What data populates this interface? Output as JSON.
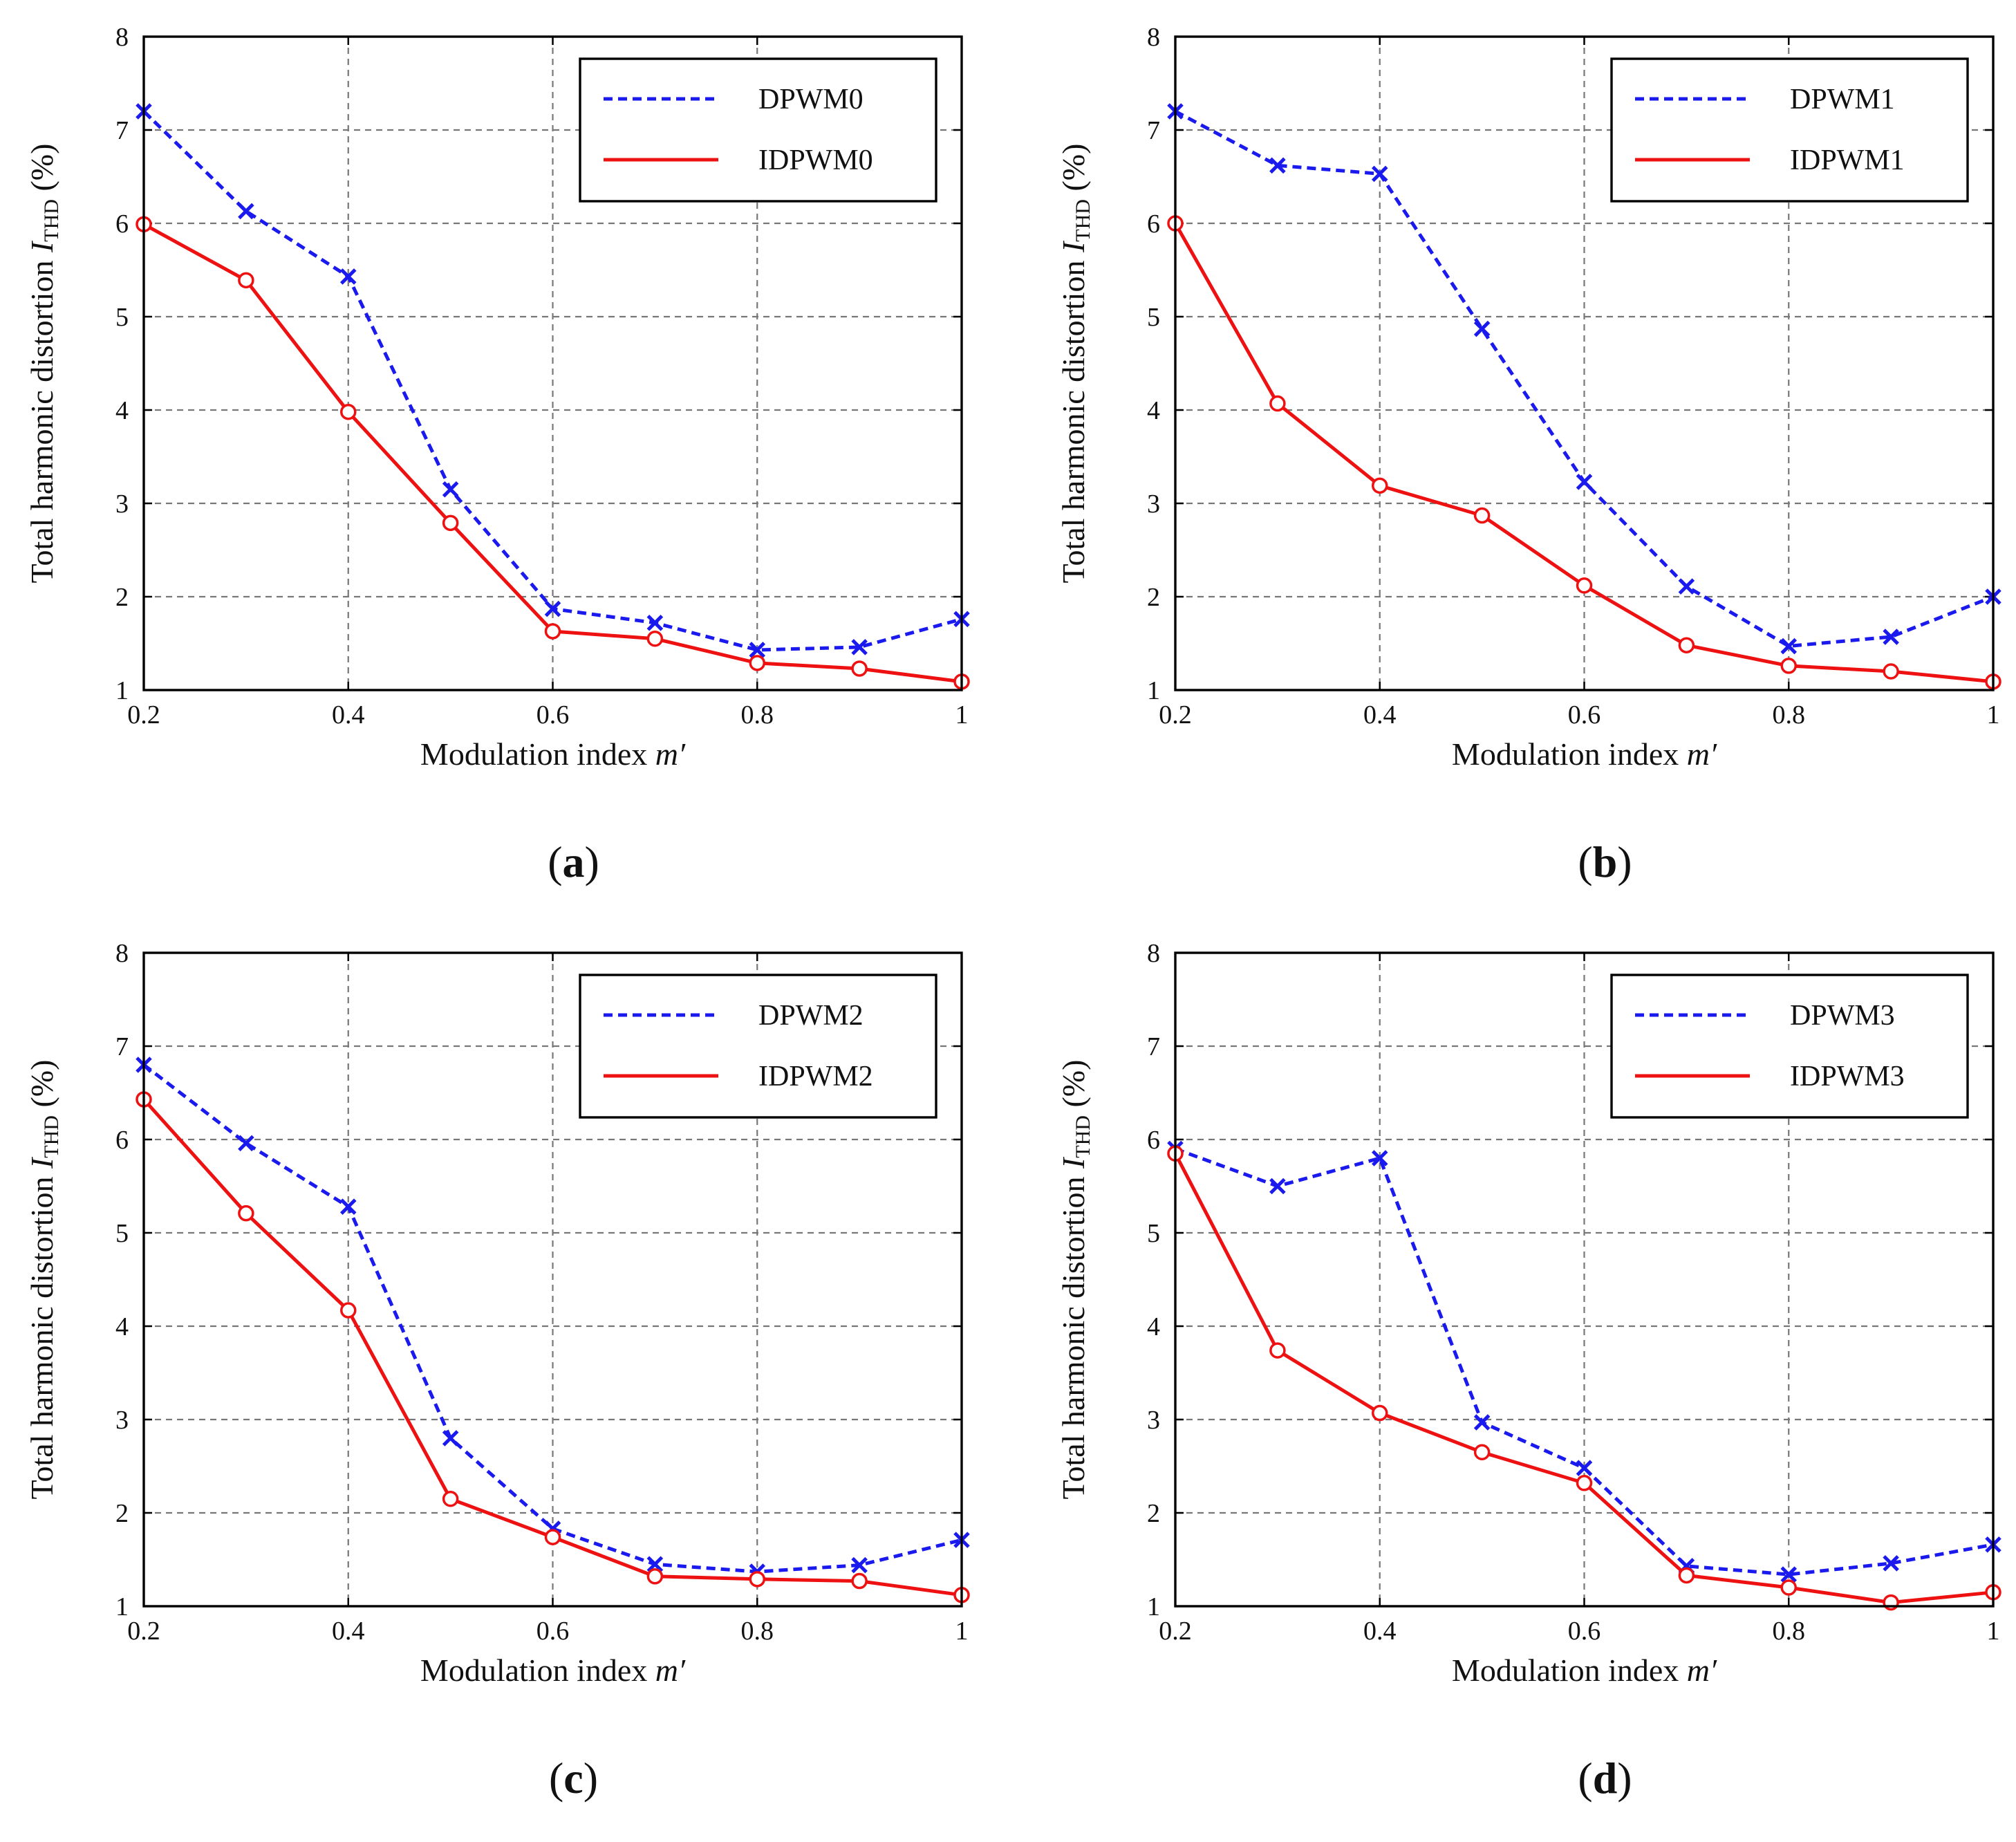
{
  "chart_data": [
    {
      "type": "line",
      "panel_label": "a",
      "xlabel": "Modulation index",
      "xlabel_var": "m′",
      "ylabel": "Total harmonic distortion",
      "ylabel_var": "I",
      "ylabel_sub": "THD",
      "ylabel_unit": "(%)",
      "xlim": [
        0.2,
        1.0
      ],
      "ylim": [
        1,
        8
      ],
      "x_ticks": [
        "0.2",
        "0.4",
        "0.6",
        "0.8",
        "1"
      ],
      "y_ticks": [
        "1",
        "2",
        "3",
        "4",
        "5",
        "6",
        "7",
        "8"
      ],
      "grid": true,
      "legend_position": "top-right",
      "x": [
        0.2,
        0.3,
        0.4,
        0.5,
        0.6,
        0.7,
        0.8,
        0.9,
        1.0
      ],
      "series": [
        {
          "name": "DPWM0",
          "color": "#1a1aee",
          "line_style": "dashed",
          "marker": "x",
          "values": [
            7.2,
            6.13,
            5.43,
            3.15,
            1.87,
            1.72,
            1.43,
            1.46,
            1.76
          ]
        },
        {
          "name": "IDPWM0",
          "color": "#ee1111",
          "line_style": "solid",
          "marker": "circle",
          "values": [
            5.99,
            5.39,
            3.98,
            2.79,
            1.63,
            1.55,
            1.29,
            1.23,
            1.09
          ]
        }
      ]
    },
    {
      "type": "line",
      "panel_label": "b",
      "xlabel": "Modulation index",
      "xlabel_var": "m′",
      "ylabel": "Total harmonic distortion",
      "ylabel_var": "I",
      "ylabel_sub": "THD",
      "ylabel_unit": "(%)",
      "xlim": [
        0.2,
        1.0
      ],
      "ylim": [
        1,
        8
      ],
      "x_ticks": [
        "0.2",
        "0.4",
        "0.6",
        "0.8",
        "1"
      ],
      "y_ticks": [
        "1",
        "2",
        "3",
        "4",
        "5",
        "6",
        "7",
        "8"
      ],
      "grid": true,
      "legend_position": "top-right",
      "x": [
        0.2,
        0.3,
        0.4,
        0.5,
        0.6,
        0.7,
        0.8,
        0.9,
        1.0
      ],
      "series": [
        {
          "name": "DPWM1",
          "color": "#1a1aee",
          "line_style": "dashed",
          "marker": "x",
          "values": [
            7.2,
            6.62,
            6.53,
            4.87,
            3.23,
            2.11,
            1.47,
            1.57,
            2.0
          ]
        },
        {
          "name": "IDPWM1",
          "color": "#ee1111",
          "line_style": "solid",
          "marker": "circle",
          "values": [
            6.0,
            4.07,
            3.19,
            2.87,
            2.12,
            1.48,
            1.26,
            1.2,
            1.09
          ]
        }
      ]
    },
    {
      "type": "line",
      "panel_label": "c",
      "xlabel": "Modulation index",
      "xlabel_var": "m′",
      "ylabel": "Total harmonic distortion",
      "ylabel_var": "I",
      "ylabel_sub": "THD",
      "ylabel_unit": "(%)",
      "xlim": [
        0.2,
        1.0
      ],
      "ylim": [
        1,
        8
      ],
      "x_ticks": [
        "0.2",
        "0.4",
        "0.6",
        "0.8",
        "1"
      ],
      "y_ticks": [
        "1",
        "2",
        "3",
        "4",
        "5",
        "6",
        "7",
        "8"
      ],
      "grid": true,
      "legend_position": "top-right",
      "x": [
        0.2,
        0.3,
        0.4,
        0.5,
        0.6,
        0.7,
        0.8,
        0.9,
        1.0
      ],
      "series": [
        {
          "name": "DPWM2",
          "color": "#1a1aee",
          "line_style": "dashed",
          "marker": "x",
          "values": [
            6.8,
            5.96,
            5.28,
            2.8,
            1.83,
            1.45,
            1.37,
            1.44,
            1.71
          ]
        },
        {
          "name": "IDPWM2",
          "color": "#ee1111",
          "line_style": "solid",
          "marker": "circle",
          "values": [
            6.43,
            5.21,
            4.17,
            2.15,
            1.74,
            1.32,
            1.29,
            1.27,
            1.12
          ]
        }
      ]
    },
    {
      "type": "line",
      "panel_label": "d",
      "xlabel": "Modulation index",
      "xlabel_var": "m′",
      "ylabel": "Total harmonic distortion",
      "ylabel_var": "I",
      "ylabel_sub": "THD",
      "ylabel_unit": "(%)",
      "xlim": [
        0.2,
        1.0
      ],
      "ylim": [
        1,
        8
      ],
      "x_ticks": [
        "0.2",
        "0.4",
        "0.6",
        "0.8",
        "1"
      ],
      "y_ticks": [
        "1",
        "2",
        "3",
        "4",
        "5",
        "6",
        "7",
        "8"
      ],
      "grid": true,
      "legend_position": "top-right",
      "x": [
        0.2,
        0.3,
        0.4,
        0.5,
        0.6,
        0.7,
        0.8,
        0.9,
        1.0
      ],
      "series": [
        {
          "name": "DPWM3",
          "color": "#1a1aee",
          "line_style": "dashed",
          "marker": "x",
          "values": [
            5.9,
            5.5,
            5.8,
            2.97,
            2.48,
            1.43,
            1.34,
            1.46,
            1.66
          ]
        },
        {
          "name": "IDPWM3",
          "color": "#ee1111",
          "line_style": "solid",
          "marker": "circle",
          "values": [
            5.85,
            3.74,
            3.07,
            2.65,
            2.32,
            1.33,
            1.2,
            1.04,
            1.15
          ]
        }
      ]
    }
  ]
}
